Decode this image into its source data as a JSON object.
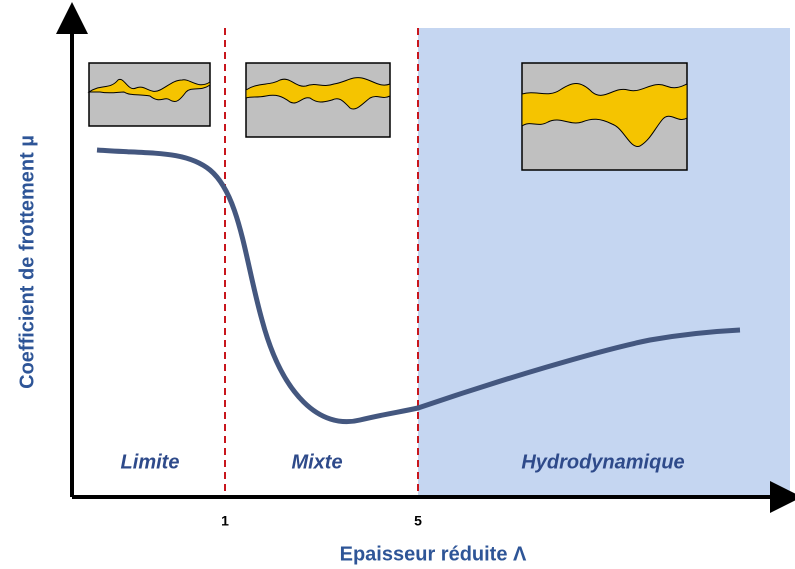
{
  "axes": {
    "y_label": "Coefficient de frottement µ",
    "x_label": "Epaisseur réduite Λ"
  },
  "ticks": [
    "1",
    "5"
  ],
  "regimes": [
    "Limite",
    "Mixte",
    "Hydrodynamique"
  ]
}
